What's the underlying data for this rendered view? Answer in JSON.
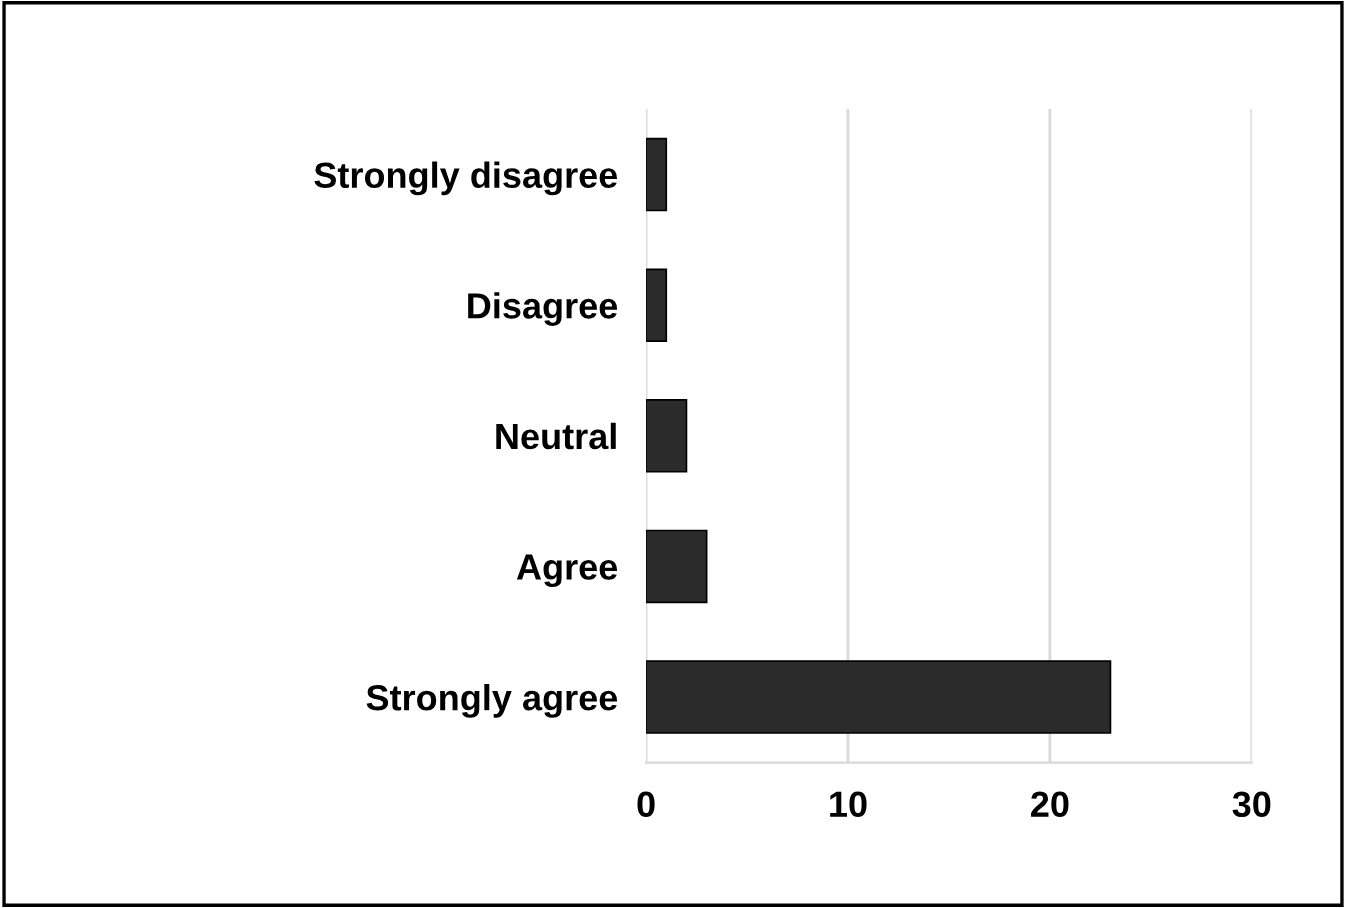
{
  "chart_data": {
    "type": "bar",
    "orientation": "horizontal",
    "categories": [
      "Strongly disagree",
      "Disagree",
      "Neutral",
      "Agree",
      "Strongly agree"
    ],
    "values": [
      1,
      1,
      2,
      3,
      23
    ],
    "color": "#2b2b2b",
    "xlim": [
      0,
      30
    ],
    "xticks": [
      0,
      10,
      20,
      30
    ],
    "grid": "x"
  }
}
